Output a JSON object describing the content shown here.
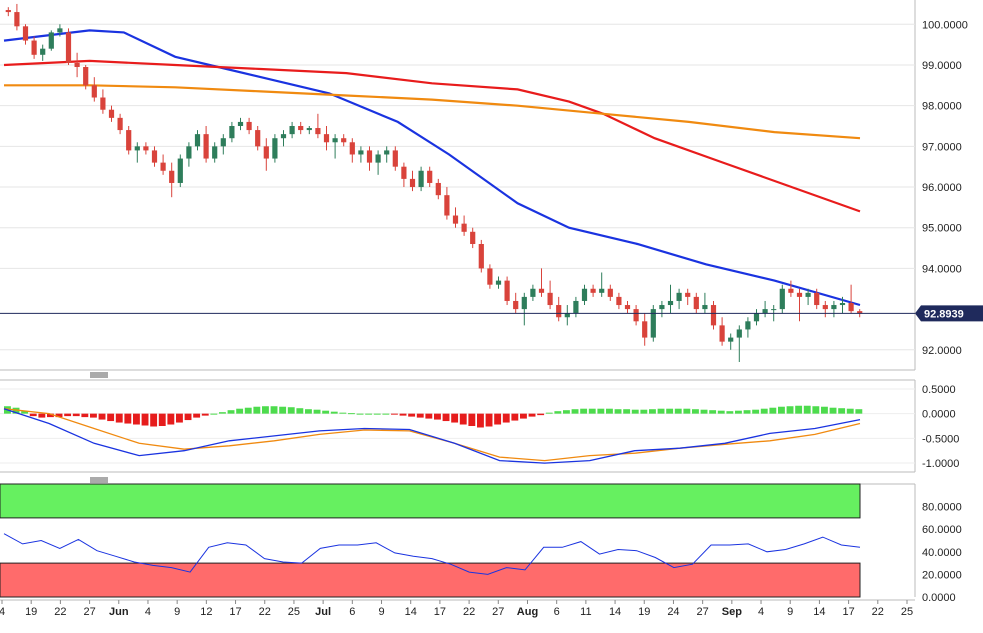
{
  "chart_data": [
    {
      "type": "candlestick",
      "panel": "price",
      "ylim": [
        91.7,
        100.4
      ],
      "y_ticks": [
        "100.0000",
        "99.0000",
        "98.0000",
        "97.0000",
        "96.0000",
        "95.0000",
        "94.0000",
        "92.0000"
      ],
      "y_tick_values": [
        100,
        99,
        98,
        97,
        96,
        95,
        94,
        92
      ],
      "current_price_label": "92.8939",
      "current_price": 92.8939,
      "colors": {
        "up": "#2e7d5b",
        "down": "#d9433b",
        "grid": "#e6e6e6"
      },
      "candles": [
        [
          100.35,
          100.42,
          100.2,
          100.3
        ],
        [
          100.3,
          100.5,
          99.85,
          99.95
        ],
        [
          99.95,
          100.0,
          99.5,
          99.6
        ],
        [
          99.6,
          99.7,
          99.15,
          99.25
        ],
        [
          99.25,
          99.5,
          99.1,
          99.4
        ],
        [
          99.4,
          99.85,
          99.35,
          99.8
        ],
        [
          99.8,
          100.0,
          99.7,
          99.9
        ],
        [
          99.8,
          99.9,
          99.0,
          99.05
        ],
        [
          99.05,
          99.3,
          98.7,
          98.95
        ],
        [
          98.95,
          99.0,
          98.4,
          98.5
        ],
        [
          98.5,
          98.7,
          98.1,
          98.2
        ],
        [
          98.2,
          98.4,
          97.8,
          97.9
        ],
        [
          97.9,
          98.0,
          97.6,
          97.7
        ],
        [
          97.7,
          97.8,
          97.3,
          97.4
        ],
        [
          97.4,
          97.5,
          96.8,
          96.9
        ],
        [
          96.9,
          97.1,
          96.6,
          97.0
        ],
        [
          97.0,
          97.1,
          96.8,
          96.9
        ],
        [
          96.9,
          97.0,
          96.5,
          96.6
        ],
        [
          96.6,
          96.8,
          96.3,
          96.4
        ],
        [
          96.4,
          96.6,
          95.75,
          96.1
        ],
        [
          96.1,
          96.8,
          96.0,
          96.7
        ],
        [
          96.7,
          97.1,
          96.5,
          97.0
        ],
        [
          97.0,
          97.4,
          96.9,
          97.3
        ],
        [
          97.3,
          97.5,
          96.6,
          96.7
        ],
        [
          96.7,
          97.1,
          96.6,
          97.0
        ],
        [
          97.0,
          97.3,
          96.8,
          97.2
        ],
        [
          97.2,
          97.6,
          97.1,
          97.5
        ],
        [
          97.5,
          97.7,
          97.4,
          97.6
        ],
        [
          97.6,
          97.7,
          97.3,
          97.4
        ],
        [
          97.4,
          97.5,
          96.9,
          97.0
        ],
        [
          97.0,
          97.2,
          96.4,
          96.7
        ],
        [
          96.7,
          97.3,
          96.6,
          97.2
        ],
        [
          97.2,
          97.4,
          97.0,
          97.3
        ],
        [
          97.3,
          97.6,
          97.2,
          97.5
        ],
        [
          97.5,
          97.6,
          97.3,
          97.4
        ],
        [
          97.4,
          97.5,
          97.3,
          97.45
        ],
        [
          97.45,
          97.8,
          97.2,
          97.3
        ],
        [
          97.3,
          97.5,
          96.9,
          97.1
        ],
        [
          97.1,
          97.3,
          96.7,
          97.2
        ],
        [
          97.2,
          97.3,
          97.0,
          97.1
        ],
        [
          97.1,
          97.2,
          96.6,
          96.8
        ],
        [
          96.8,
          97.0,
          96.6,
          96.9
        ],
        [
          96.9,
          97.0,
          96.4,
          96.6
        ],
        [
          96.6,
          96.9,
          96.3,
          96.8
        ],
        [
          96.8,
          97.0,
          96.6,
          96.9
        ],
        [
          96.9,
          97.0,
          96.4,
          96.5
        ],
        [
          96.5,
          96.6,
          96.0,
          96.2
        ],
        [
          96.2,
          96.4,
          95.9,
          96.0
        ],
        [
          96.0,
          96.5,
          95.9,
          96.4
        ],
        [
          96.4,
          96.5,
          96.0,
          96.1
        ],
        [
          96.1,
          96.2,
          95.7,
          95.8
        ],
        [
          95.8,
          96.0,
          95.2,
          95.3
        ],
        [
          95.3,
          95.5,
          95.0,
          95.1
        ],
        [
          95.1,
          95.3,
          94.8,
          94.9
        ],
        [
          94.9,
          95.0,
          94.5,
          94.6
        ],
        [
          94.6,
          94.7,
          93.9,
          94.0
        ],
        [
          94.0,
          94.1,
          93.5,
          93.6
        ],
        [
          93.6,
          93.8,
          93.5,
          93.7
        ],
        [
          93.7,
          93.8,
          93.1,
          93.2
        ],
        [
          93.2,
          93.4,
          92.9,
          93.0
        ],
        [
          93.0,
          93.4,
          92.6,
          93.3
        ],
        [
          93.3,
          93.6,
          93.2,
          93.5
        ],
        [
          93.5,
          94.0,
          93.3,
          93.4
        ],
        [
          93.4,
          93.7,
          93.0,
          93.1
        ],
        [
          93.1,
          93.3,
          92.7,
          92.8
        ],
        [
          92.8,
          93.1,
          92.6,
          92.9
        ],
        [
          92.9,
          93.3,
          92.8,
          93.2
        ],
        [
          93.2,
          93.6,
          93.1,
          93.5
        ],
        [
          93.5,
          93.6,
          93.3,
          93.4
        ],
        [
          93.4,
          93.9,
          93.3,
          93.5
        ],
        [
          93.5,
          93.6,
          93.2,
          93.3
        ],
        [
          93.3,
          93.4,
          93.0,
          93.1
        ],
        [
          93.1,
          93.2,
          92.9,
          93.0
        ],
        [
          93.0,
          93.1,
          92.6,
          92.7
        ],
        [
          92.7,
          92.9,
          92.1,
          92.3
        ],
        [
          92.3,
          93.1,
          92.2,
          93.0
        ],
        [
          93.0,
          93.2,
          92.8,
          93.1
        ],
        [
          93.1,
          93.6,
          92.9,
          93.2
        ],
        [
          93.2,
          93.5,
          93.0,
          93.4
        ],
        [
          93.4,
          93.5,
          93.1,
          93.3
        ],
        [
          93.3,
          93.4,
          92.9,
          93.0
        ],
        [
          93.0,
          93.4,
          92.9,
          93.1
        ],
        [
          93.1,
          93.2,
          92.5,
          92.6
        ],
        [
          92.6,
          92.8,
          92.1,
          92.2
        ],
        [
          92.2,
          92.4,
          92.0,
          92.3
        ],
        [
          92.3,
          92.6,
          91.7,
          92.5
        ],
        [
          92.5,
          92.8,
          92.3,
          92.7
        ],
        [
          92.7,
          93.0,
          92.6,
          92.9
        ],
        [
          92.9,
          93.2,
          92.8,
          93.0
        ],
        [
          93.0,
          93.1,
          92.7,
          93.0
        ],
        [
          93.0,
          93.6,
          92.9,
          93.5
        ],
        [
          93.5,
          93.7,
          93.3,
          93.4
        ],
        [
          93.4,
          93.5,
          92.7,
          93.3
        ],
        [
          93.3,
          93.5,
          93.1,
          93.4
        ],
        [
          93.4,
          93.5,
          93.0,
          93.1
        ],
        [
          93.1,
          93.2,
          92.8,
          93.0
        ],
        [
          93.0,
          93.2,
          92.8,
          93.1
        ],
        [
          93.1,
          93.3,
          92.9,
          93.15
        ],
        [
          93.15,
          93.6,
          92.9,
          92.95
        ],
        [
          92.95,
          93.0,
          92.8,
          92.89
        ]
      ],
      "moving_averages": [
        {
          "color": "#1a33e0",
          "points": [
            [
              0,
              99.6
            ],
            [
              4,
              99.7
            ],
            [
              10,
              99.85
            ],
            [
              14,
              99.8
            ],
            [
              20,
              99.2
            ],
            [
              26,
              98.9
            ],
            [
              32,
              98.6
            ],
            [
              38,
              98.3
            ],
            [
              46,
              97.6
            ],
            [
              52,
              96.8
            ],
            [
              60,
              95.6
            ],
            [
              66,
              95.0
            ],
            [
              74,
              94.6
            ],
            [
              82,
              94.1
            ],
            [
              90,
              93.7
            ],
            [
              100,
              93.1
            ]
          ]
        },
        {
          "color": "#e81c1c",
          "points": [
            [
              0,
              99.0
            ],
            [
              10,
              99.1
            ],
            [
              20,
              99.0
            ],
            [
              30,
              98.9
            ],
            [
              40,
              98.8
            ],
            [
              50,
              98.55
            ],
            [
              60,
              98.4
            ],
            [
              66,
              98.1
            ],
            [
              70,
              97.8
            ],
            [
              76,
              97.2
            ],
            [
              84,
              96.6
            ],
            [
              92,
              96.0
            ],
            [
              100,
              95.4
            ]
          ]
        },
        {
          "color": "#f08a10",
          "points": [
            [
              0,
              98.5
            ],
            [
              10,
              98.5
            ],
            [
              20,
              98.45
            ],
            [
              30,
              98.35
            ],
            [
              40,
              98.25
            ],
            [
              50,
              98.15
            ],
            [
              60,
              98.0
            ],
            [
              70,
              97.8
            ],
            [
              80,
              97.6
            ],
            [
              90,
              97.35
            ],
            [
              100,
              97.2
            ]
          ]
        }
      ]
    },
    {
      "type": "macd",
      "panel": "macd",
      "ylim": [
        -1.1,
        0.6
      ],
      "y_ticks": [
        "0.5000",
        "0.0000",
        "-0.5000",
        "-1.0000"
      ],
      "y_tick_values": [
        0.5,
        0.0,
        -0.5,
        -1.0
      ],
      "histogram": [
        0.15,
        0.12,
        0.05,
        -0.05,
        -0.08,
        -0.07,
        -0.07,
        -0.05,
        -0.05,
        -0.07,
        -0.08,
        -0.12,
        -0.15,
        -0.18,
        -0.2,
        -0.22,
        -0.24,
        -0.26,
        -0.25,
        -0.22,
        -0.18,
        -0.13,
        -0.08,
        -0.04,
        0.0,
        0.03,
        0.07,
        0.1,
        0.12,
        0.14,
        0.15,
        0.15,
        0.14,
        0.13,
        0.11,
        0.09,
        0.08,
        0.06,
        0.04,
        0.02,
        0.01,
        0.0,
        0.0,
        0.0,
        0.0,
        -0.02,
        -0.04,
        -0.06,
        -0.08,
        -0.1,
        -0.12,
        -0.15,
        -0.18,
        -0.22,
        -0.25,
        -0.28,
        -0.26,
        -0.22,
        -0.18,
        -0.14,
        -0.1,
        -0.06,
        -0.03,
        0.02,
        0.05,
        0.07,
        0.09,
        0.1,
        0.1,
        0.1,
        0.1,
        0.09,
        0.09,
        0.08,
        0.08,
        0.09,
        0.1,
        0.1,
        0.1,
        0.1,
        0.09,
        0.08,
        0.07,
        0.06,
        0.05,
        0.06,
        0.07,
        0.08,
        0.1,
        0.12,
        0.14,
        0.15,
        0.16,
        0.16,
        0.15,
        0.14,
        0.12,
        0.11,
        0.1,
        0.09
      ],
      "macd_line": [
        0.1,
        -0.2,
        -0.6,
        -0.85,
        -0.75,
        -0.55,
        -0.45,
        -0.35,
        -0.3,
        -0.32,
        -0.6,
        -0.95,
        -1.0,
        -0.95,
        -0.75,
        -0.7,
        -0.6,
        -0.4,
        -0.3,
        -0.12
      ],
      "signal_line": [
        0.1,
        0.0,
        -0.3,
        -0.6,
        -0.72,
        -0.65,
        -0.55,
        -0.42,
        -0.33,
        -0.35,
        -0.6,
        -0.88,
        -0.95,
        -0.85,
        -0.8,
        -0.7,
        -0.62,
        -0.55,
        -0.42,
        -0.2
      ],
      "colors": {
        "pos": "#4ddb4d",
        "neg": "#e61c1c",
        "macd": "#1a33e0",
        "signal": "#f08a10"
      }
    },
    {
      "type": "rsi",
      "panel": "rsi",
      "ylim": [
        0,
        100
      ],
      "y_ticks": [
        "80.0000",
        "60.0000",
        "40.0000",
        "20.0000",
        "0.0000"
      ],
      "y_tick_values": [
        80,
        60,
        40,
        20,
        0
      ],
      "overbought": 70,
      "oversold": 30,
      "values": [
        56,
        47,
        50,
        43,
        51,
        41,
        36,
        31,
        28,
        26,
        22,
        44,
        48,
        46,
        34,
        31,
        30,
        43,
        46,
        46,
        48,
        39,
        36,
        34,
        29,
        22,
        20,
        26,
        24,
        44,
        44,
        49,
        38,
        42,
        41,
        35,
        26,
        29,
        46,
        46,
        47,
        40,
        42,
        47,
        53,
        46,
        44
      ],
      "colors": {
        "line": "#1a33e0",
        "overbought": "#66f060",
        "oversold": "#ff6b6b"
      }
    }
  ],
  "x_axis": {
    "labels": [
      "4",
      "19",
      "22",
      "27",
      "Jun",
      "4",
      "9",
      "12",
      "17",
      "22",
      "25",
      "Jul",
      "6",
      "9",
      "14",
      "17",
      "22",
      "27",
      "Aug",
      "6",
      "11",
      "14",
      "19",
      "24",
      "27",
      "Sep",
      "4",
      "9",
      "14",
      "17",
      "22",
      "25"
    ],
    "positions": [
      0,
      4,
      8,
      12,
      16,
      20,
      24,
      28,
      32,
      36,
      40,
      44,
      48,
      52,
      56,
      60,
      64,
      68,
      72,
      76,
      80,
      84,
      88,
      92,
      96,
      100,
      104,
      108,
      112,
      116,
      120,
      124
    ],
    "bold": [
      "Jun",
      "Jul",
      "Aug",
      "Sep"
    ]
  }
}
